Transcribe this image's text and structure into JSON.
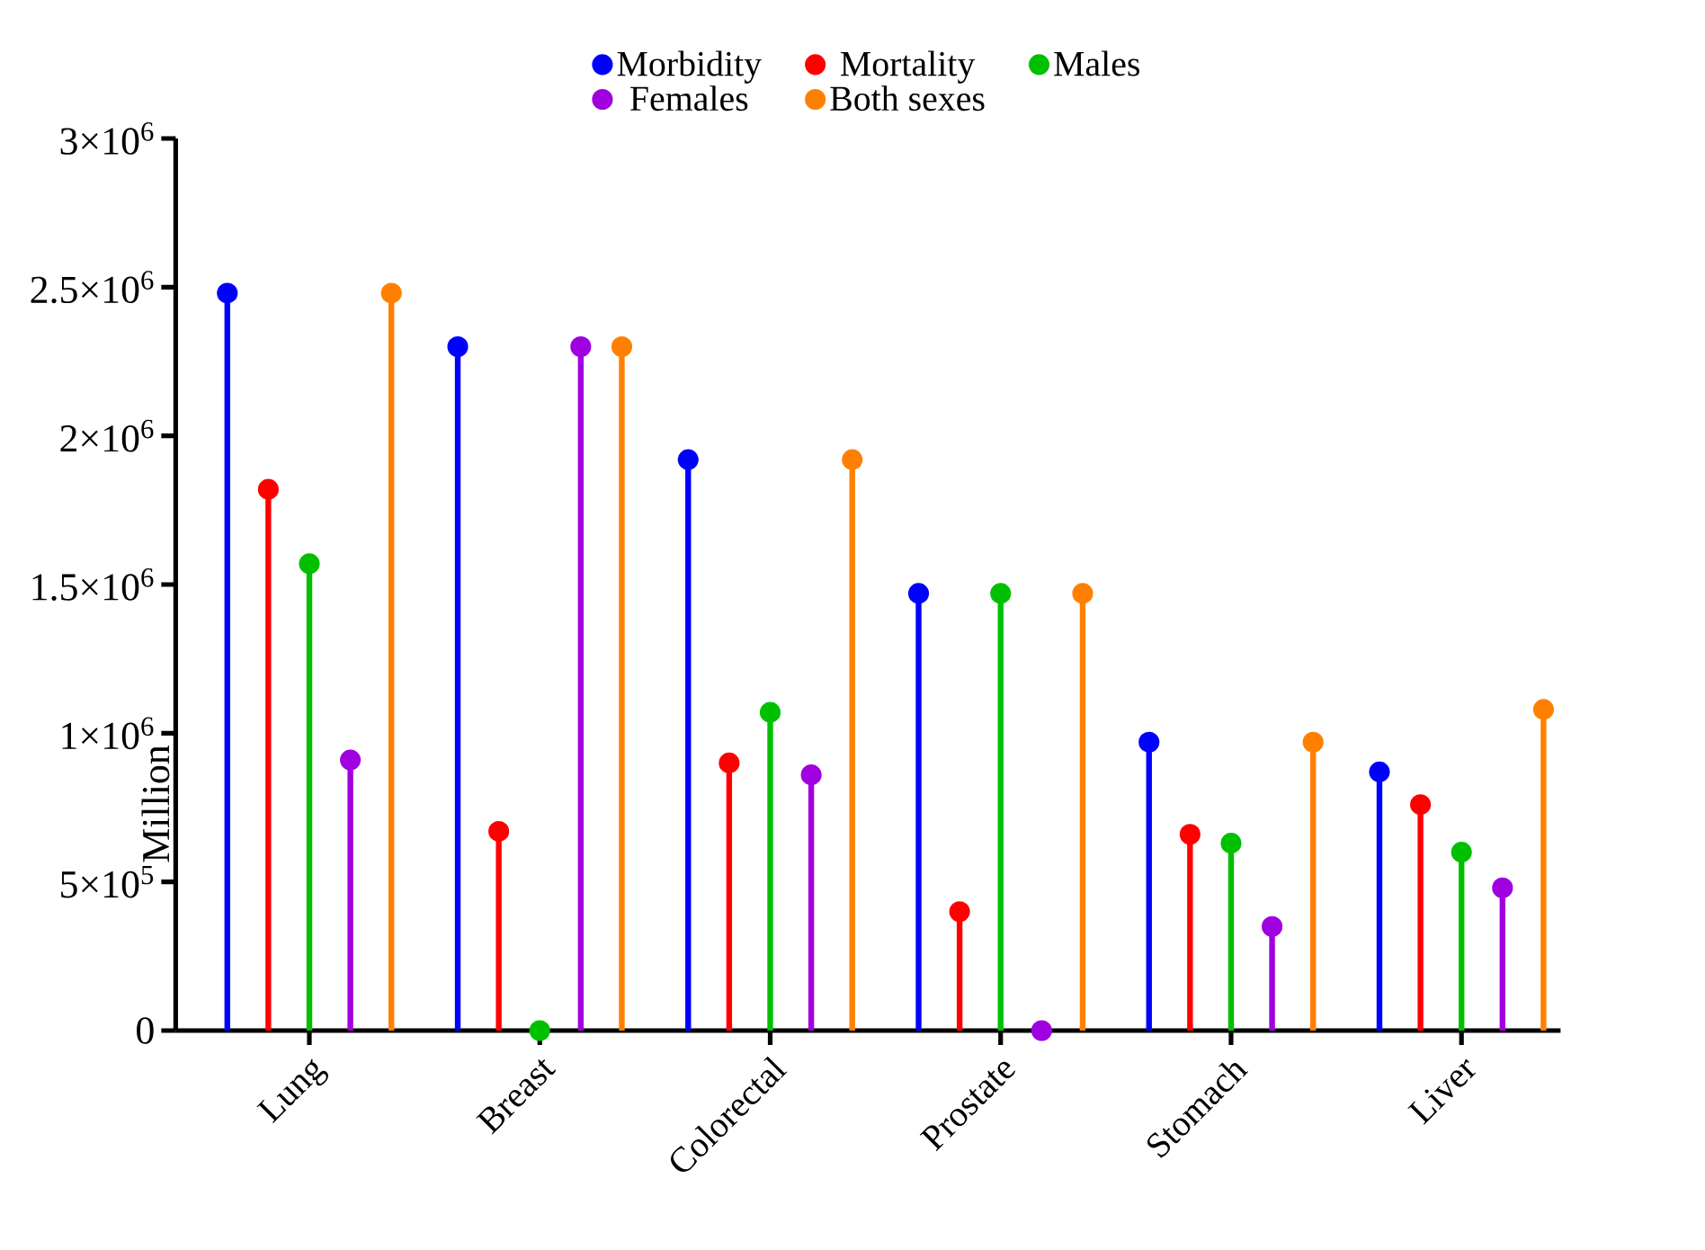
{
  "chart_data": {
    "type": "lollipop",
    "ylabel": "Million",
    "categories": [
      "Lung",
      "Breast",
      "Colorectal",
      "Prostate",
      "Stomach",
      "Liver"
    ],
    "series": [
      {
        "name": "Morbidity",
        "color": "#0000ff",
        "values": [
          2480000,
          2300000,
          1920000,
          1470000,
          970000,
          870000
        ]
      },
      {
        "name": "Mortality",
        "color": "#ff0000",
        "values": [
          1820000,
          670000,
          900000,
          400000,
          660000,
          760000
        ]
      },
      {
        "name": "Males",
        "color": "#00c000",
        "values": [
          1570000,
          0,
          1070000,
          1470000,
          630000,
          600000
        ]
      },
      {
        "name": "Females",
        "color": "#a000e0",
        "values": [
          910000,
          2300000,
          860000,
          0,
          350000,
          480000
        ]
      },
      {
        "name": "Both sexes",
        "color": "#ff8000",
        "values": [
          2480000,
          2300000,
          1920000,
          1470000,
          970000,
          1080000
        ]
      }
    ],
    "ylim": [
      0,
      3000000
    ],
    "yticks": [
      0,
      {
        "value": 500000,
        "label": "5×10$^{5}$"
      },
      {
        "value": 1000000,
        "label": "1×10$^{6}$"
      },
      {
        "value": 1500000,
        "label": "1.5×10$^{6}$"
      },
      {
        "value": 2000000,
        "label": "2×10$^{6}$"
      },
      {
        "value": 2500000,
        "label": "2.5×10$^{6}$"
      },
      {
        "value": 3000000,
        "label": "3×10$^{6}$"
      }
    ],
    "marker": "circle",
    "legend": "top",
    "grid": false
  }
}
